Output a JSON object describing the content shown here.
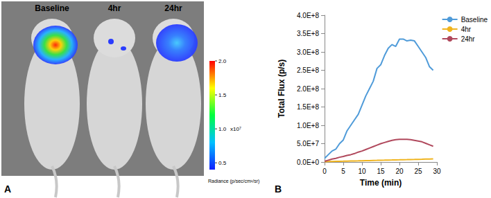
{
  "chart_data": {
    "type": "line",
    "panel_label": "B",
    "x_label": "Time (min)",
    "y_label": "Total Flux (p/s)",
    "x": [
      0,
      1,
      2,
      3,
      4,
      5,
      6,
      7,
      8,
      9,
      10,
      11,
      12,
      13,
      14,
      15,
      16,
      17,
      18,
      19,
      20,
      21,
      22,
      23,
      24,
      25,
      26,
      27,
      28,
      29
    ],
    "series": [
      {
        "name": "Baseline",
        "color": "#4f9bd9",
        "values": [
          10000000,
          20000000,
          30000000,
          35000000,
          50000000,
          60000000,
          85000000,
          100000000,
          115000000,
          130000000,
          155000000,
          180000000,
          200000000,
          220000000,
          255000000,
          265000000,
          290000000,
          310000000,
          320000000,
          315000000,
          335000000,
          335000000,
          330000000,
          332000000,
          330000000,
          315000000,
          300000000,
          285000000,
          260000000,
          250000000
        ]
      },
      {
        "name": "4hr",
        "color": "#f0b41e",
        "values": [
          1000000,
          1200000,
          1500000,
          1800000,
          2000000,
          2200000,
          2500000,
          2800000,
          3000000,
          3200000,
          3500000,
          3800000,
          4000000,
          4300000,
          4500000,
          4800000,
          5000000,
          5300000,
          5500000,
          5800000,
          6000000,
          6300000,
          6500000,
          6800000,
          7000000,
          7300000,
          7500000,
          7800000,
          8000000,
          8500000
        ]
      },
      {
        "name": "24hr",
        "color": "#b0485c",
        "values": [
          2000000,
          5000000,
          8000000,
          10000000,
          13000000,
          15000000,
          18000000,
          20000000,
          23000000,
          27000000,
          30000000,
          34000000,
          38000000,
          42000000,
          46000000,
          50000000,
          53000000,
          56000000,
          59000000,
          61000000,
          62000000,
          62000000,
          62000000,
          61000000,
          59000000,
          57000000,
          55000000,
          51000000,
          47000000,
          43000000
        ]
      }
    ],
    "xlim": [
      0,
      30
    ],
    "xticks": [
      0,
      5,
      10,
      15,
      20,
      25,
      30
    ],
    "ylim": [
      0,
      400000000
    ],
    "yticks": [
      {
        "value": 0,
        "label": "0.0E+0"
      },
      {
        "value": 50000000,
        "label": "5.0E+7"
      },
      {
        "value": 100000000,
        "label": "1.0E+8"
      },
      {
        "value": 150000000,
        "label": "1.5E+8"
      },
      {
        "value": 200000000,
        "label": "2.0E+8"
      },
      {
        "value": 250000000,
        "label": "2.5E+8"
      },
      {
        "value": 300000000,
        "label": "3.0E+8"
      },
      {
        "value": 350000000,
        "label": "3.5E+8"
      },
      {
        "value": 400000000,
        "label": "4.0E+8"
      }
    ],
    "grid": false,
    "legend": "right",
    "marker": "none",
    "line_style": "solid"
  },
  "image_panel": {
    "panel_label": "A",
    "labels": [
      "Baseline",
      "4hr",
      "24hr"
    ],
    "colorbar": {
      "title": "Radiance (p/sec/cm²/sr)",
      "multiplier": "x10⁷",
      "range": [
        0.4,
        2.0
      ],
      "ticks": [
        {
          "value": 0.5,
          "label": "0.5"
        },
        {
          "value": 1.0,
          "label": "1.0"
        },
        {
          "value": 1.5,
          "label": "1.5"
        },
        {
          "value": 2.0,
          "label": "2.0"
        }
      ]
    }
  }
}
